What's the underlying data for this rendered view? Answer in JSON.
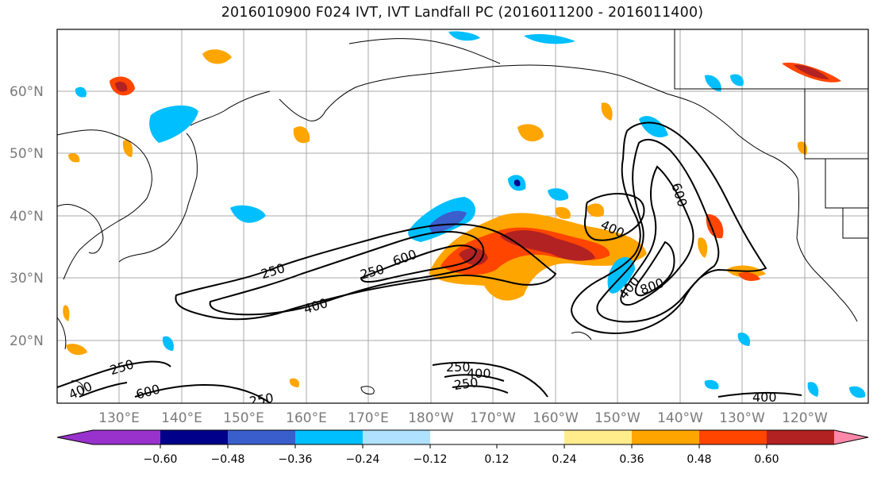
{
  "title": "2016010900 F024 IVT, IVT Landfall PC (2016011200 - 2016011400)",
  "lat_labels": [
    "60°N",
    "50°N",
    "40°N",
    "30°N",
    "20°N"
  ],
  "lon_labels": [
    "130°E",
    "140°E",
    "150°E",
    "160°E",
    "170°E",
    "180°W",
    "170°W",
    "160°W",
    "150°W",
    "140°W",
    "130°W",
    "120°W"
  ],
  "contour_labels": [
    "250",
    "400",
    "600",
    "250",
    "400",
    "600",
    "400",
    "800",
    "250",
    "400",
    "600",
    "250",
    "400",
    "250",
    "250",
    "400"
  ],
  "colorbar": {
    "ticks": [
      "−0.60",
      "−0.48",
      "−0.36",
      "−0.24",
      "−0.12",
      "0.12",
      "0.24",
      "0.36",
      "0.48",
      "0.60"
    ],
    "colors": [
      "#9932cc",
      "#00008b",
      "#3a5fcd",
      "#00bfff",
      "#b0e2ff",
      "#ffffff",
      "#ffec8b",
      "#ffa500",
      "#ff4500",
      "#b22222",
      "#ff88aa"
    ]
  },
  "colors": {
    "land": "#ffffff",
    "grid": "#9e9e9e",
    "contour": "#000000"
  }
}
